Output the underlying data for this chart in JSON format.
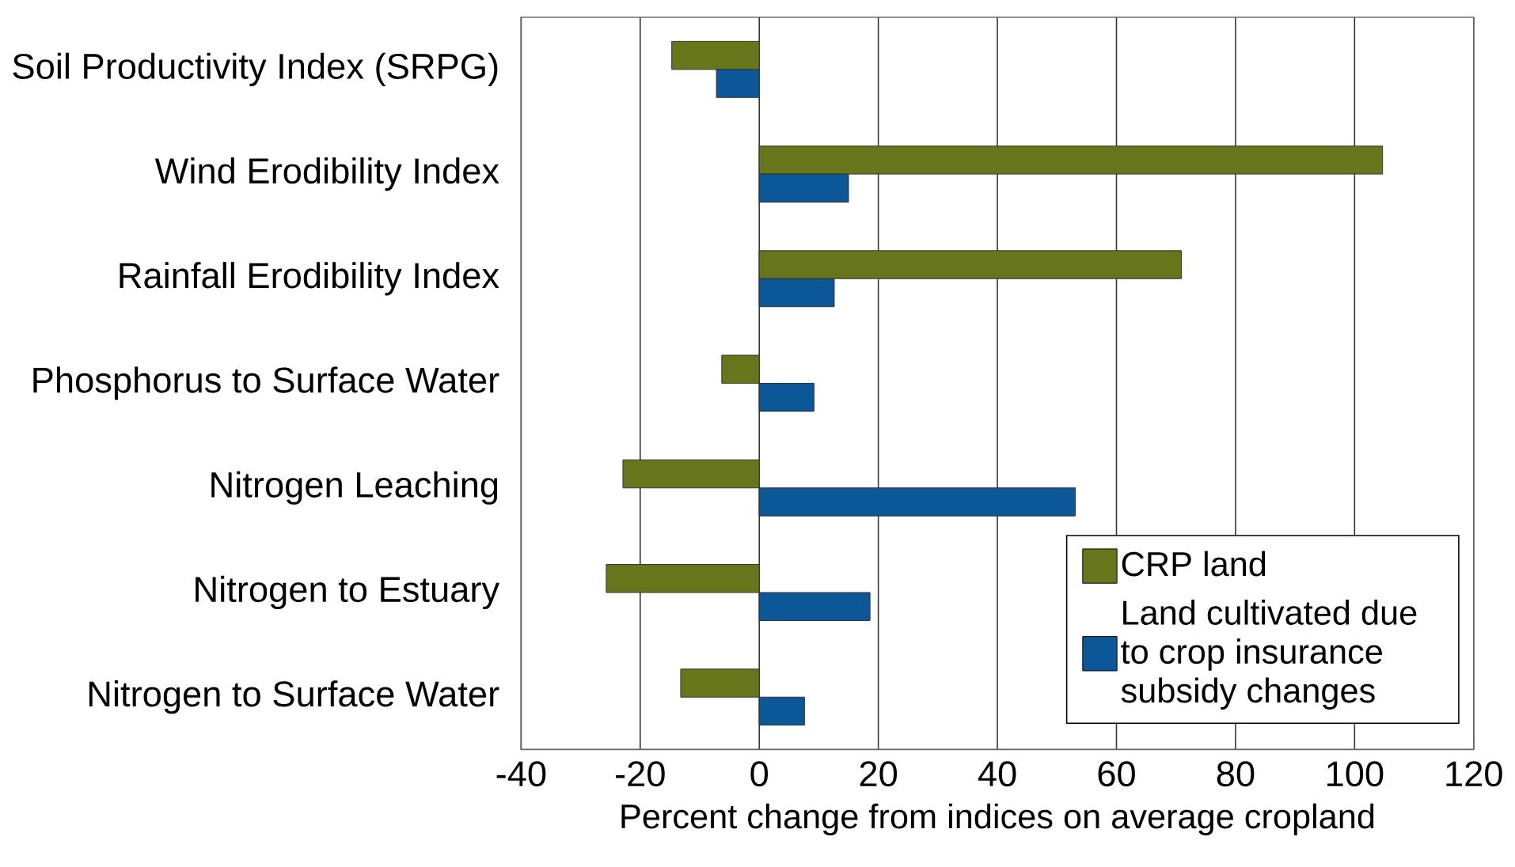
{
  "chart_data": {
    "type": "bar",
    "orientation": "horizontal",
    "xlabel": "Percent change from indices on average cropland",
    "categories": [
      "Soil Productivity Index (SRPG)",
      "Wind Erodibility Index",
      "Rainfall Erodibility Index",
      "Phosphorus to Surface Water",
      "Nitrogen Leaching",
      "Nitrogen to Estuary",
      "Nitrogen to Surface Water"
    ],
    "series": [
      {
        "name": "CRP land",
        "color": "#67761b",
        "values": [
          -14.7,
          104.7,
          70.9,
          -6.3,
          -22.9,
          -25.7,
          -13.2
        ]
      },
      {
        "name": "Land cultivated due to crop insurance subsidy changes",
        "color": "#0b5797",
        "values": [
          -7.2,
          15.0,
          12.6,
          9.2,
          53.1,
          18.6,
          7.6
        ]
      }
    ],
    "xlim": [
      -40,
      120
    ],
    "xticks": [
      -40,
      -20,
      0,
      20,
      40,
      60,
      80,
      100,
      120
    ],
    "grid": "x",
    "legend": "bottom right"
  }
}
